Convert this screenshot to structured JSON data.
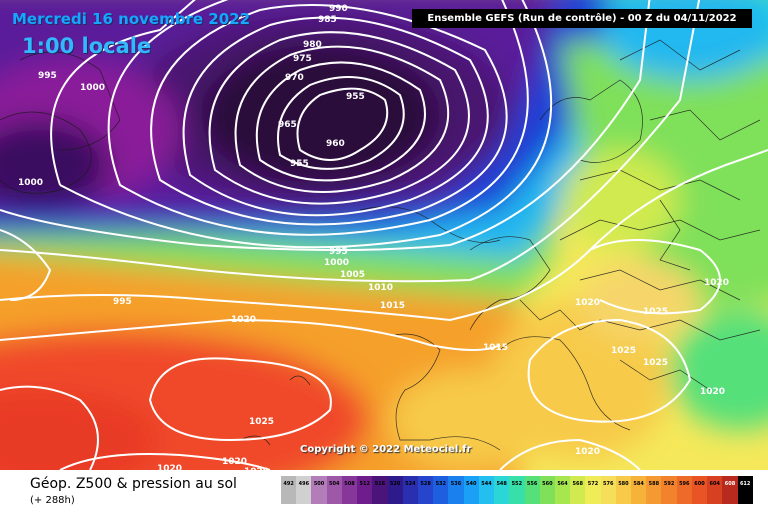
{
  "map": {
    "date": "Mercredi 16 novembre 2022",
    "local_time": "1:00 locale",
    "run_info": "Ensemble GEFS  (Run de contrôle)  -  00 Z du 04/11/2022",
    "copyright": "Copyright © 2022 Meteociel.fr",
    "pressure_labels": [
      "990",
      "985",
      "980",
      "975",
      "970",
      "965",
      "960",
      "955",
      "955",
      "995",
      "1000",
      "1000",
      "995",
      "1000",
      "1005",
      "995",
      "1010",
      "1015",
      "1020",
      "1025",
      "1015",
      "1020",
      "1025",
      "1025",
      "1025",
      "1020",
      "1020",
      "1020",
      "1020",
      "1020",
      "1020"
    ],
    "colors": {
      "deep_low": "#2a0e3a",
      "low": "#8a1f9a",
      "blue": "#1a3fd6",
      "cyan": "#22b8f0",
      "green": "#7fe05a",
      "yellow": "#f5e85a",
      "orange": "#f5a02a",
      "red": "#f04a2a",
      "land_high": "#f6d66a"
    }
  },
  "footer": {
    "title": "Géop. Z500 & pression au sol",
    "forecast_hours": "(+ 288h)",
    "scale": [
      {
        "value": "492",
        "color": "#b8b8b8"
      },
      {
        "value": "496",
        "color": "#d0d0d0"
      },
      {
        "value": "500",
        "color": "#b27db8"
      },
      {
        "value": "504",
        "color": "#9d58a8"
      },
      {
        "value": "508",
        "color": "#87369a"
      },
      {
        "value": "512",
        "color": "#6e1e8c"
      },
      {
        "value": "516",
        "color": "#4a147a"
      },
      {
        "value": "520",
        "color": "#2e1a8a"
      },
      {
        "value": "524",
        "color": "#2a2fb0"
      },
      {
        "value": "528",
        "color": "#2645cc"
      },
      {
        "value": "532",
        "color": "#1e5fe0"
      },
      {
        "value": "536",
        "color": "#1a80ee"
      },
      {
        "value": "540",
        "color": "#1aa0f5"
      },
      {
        "value": "544",
        "color": "#22bff0"
      },
      {
        "value": "548",
        "color": "#2ad6d6"
      },
      {
        "value": "552",
        "color": "#36e0a8"
      },
      {
        "value": "556",
        "color": "#55e07a"
      },
      {
        "value": "560",
        "color": "#80e05a"
      },
      {
        "value": "564",
        "color": "#a8e650"
      },
      {
        "value": "568",
        "color": "#d0ea50"
      },
      {
        "value": "572",
        "color": "#f0ec58"
      },
      {
        "value": "576",
        "color": "#f5de5a"
      },
      {
        "value": "580",
        "color": "#f7ca4a"
      },
      {
        "value": "584",
        "color": "#f7b23a"
      },
      {
        "value": "588",
        "color": "#f59a32"
      },
      {
        "value": "592",
        "color": "#f2822c"
      },
      {
        "value": "596",
        "color": "#ee6a28"
      },
      {
        "value": "600",
        "color": "#e85424"
      },
      {
        "value": "604",
        "color": "#d84022"
      },
      {
        "value": "608",
        "color": "#b82a1e"
      },
      {
        "value": "612",
        "color": "#000000"
      }
    ]
  }
}
